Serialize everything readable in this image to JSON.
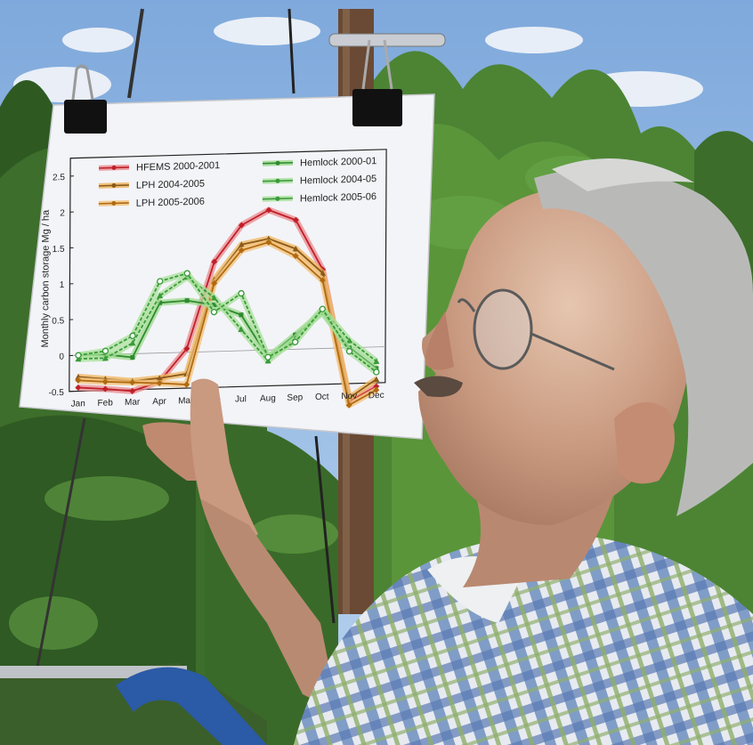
{
  "photo": {
    "colors": {
      "sky": "#9cc0e6",
      "cloud": "#f4f6fa",
      "tree_dark": "#2f5a23",
      "tree_light": "#5e9a3c",
      "paper": "#f3f4f8",
      "skin": "#c9997e",
      "hair": "#b9bab8",
      "pole": "#6a4a34",
      "shirt_blue": "#6f8fc0",
      "shirt_white": "#eef0f2",
      "bar_blue": "#2b5aa6"
    },
    "icons": [
      "binder-clip-icon",
      "glasses-icon"
    ]
  },
  "chart_data": {
    "type": "line",
    "categories": [
      "Jan",
      "Feb",
      "Mar",
      "Apr",
      "May",
      "Jun",
      "Jul",
      "Aug",
      "Sep",
      "Oct",
      "Nov",
      "Dec"
    ],
    "ylabel": "Monthly carbon storage Mg / ha",
    "ylim": [
      -0.5,
      2.75
    ],
    "yticks": [
      "2.5",
      "2",
      "1.5",
      "1",
      "0.5",
      "0",
      "-0.5"
    ],
    "ytick_values": [
      2.5,
      2,
      1.5,
      1,
      0.5,
      0,
      -0.5
    ],
    "legend_placement": "top",
    "series": [
      {
        "name": "HFEMS 2000-2001",
        "color": "#c0202a",
        "glow": "#e98a8e",
        "marker": "diamond",
        "values": [
          -0.45,
          -0.48,
          -0.52,
          -0.4,
          0.05,
          1.25,
          1.75,
          1.95,
          1.8,
          1.1,
          -0.75,
          -0.55
        ]
      },
      {
        "name": "LPH 2004-2005",
        "color": "#8a5a1a",
        "glow": "#f0b45a",
        "marker": "triangle",
        "values": [
          -0.3,
          -0.34,
          -0.38,
          -0.35,
          -0.3,
          1.0,
          1.48,
          1.55,
          1.4,
          1.05,
          -0.7,
          -0.45
        ]
      },
      {
        "name": "LPH 2005-2006",
        "color": "#b06a10",
        "glow": "#f3c27a",
        "marker": "diamond",
        "values": [
          -0.35,
          -0.38,
          -0.4,
          -0.42,
          -0.45,
          0.95,
          1.4,
          1.5,
          1.3,
          0.95,
          -0.8,
          -0.6
        ]
      },
      {
        "name": "Hemlock 2000-01",
        "color": "#2f8a2f",
        "glow": "#9bd98b",
        "marker": "square",
        "values": [
          0.0,
          0.0,
          -0.05,
          0.7,
          0.72,
          0.65,
          0.5,
          -0.1,
          0.2,
          0.5,
          0.0,
          -0.3
        ]
      },
      {
        "name": "Hemlock 2004-05",
        "color": "#3a9a3a",
        "glow": "#a8e09a",
        "marker": "triangle",
        "values": [
          -0.05,
          -0.05,
          0.15,
          0.8,
          1.05,
          0.75,
          0.3,
          -0.15,
          0.15,
          0.55,
          0.1,
          -0.2
        ]
      },
      {
        "name": "Hemlock 2005-06",
        "color": "#3a9a3a",
        "glow": "#a8e09a",
        "marker": "circle",
        "values": [
          0.0,
          0.05,
          0.25,
          1.0,
          1.1,
          0.55,
          0.8,
          -0.1,
          0.1,
          0.55,
          -0.05,
          -0.35
        ]
      }
    ]
  }
}
